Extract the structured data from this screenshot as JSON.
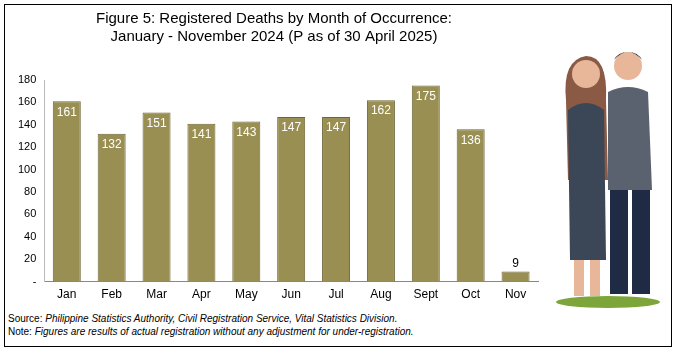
{
  "chart_data": {
    "type": "bar",
    "title": "Figure 5: Registered Deaths by Month of Occurrence:",
    "subtitle": "January - November 2024 (P as of 30 April 2025)",
    "categories": [
      "Jan",
      "Feb",
      "Mar",
      "Apr",
      "May",
      "Jun",
      "Jul",
      "Aug",
      "Sept",
      "Oct",
      "Nov"
    ],
    "values": [
      161,
      132,
      151,
      141,
      143,
      147,
      147,
      162,
      175,
      136,
      9
    ],
    "color": "#9a8f52",
    "ylim": [
      0,
      180
    ],
    "yticks": [
      {
        "value": 0,
        "label": "-"
      },
      20,
      40,
      60,
      80,
      100,
      120,
      140,
      160,
      180
    ],
    "grid": false,
    "data_labels": true,
    "annotations": [
      "Source: Philippine Statistics Authority, Civil Registration Service, Vital Statistics Division.",
      "Note: Figures are results of actual registration without any adjustment for under-registration."
    ]
  }
}
